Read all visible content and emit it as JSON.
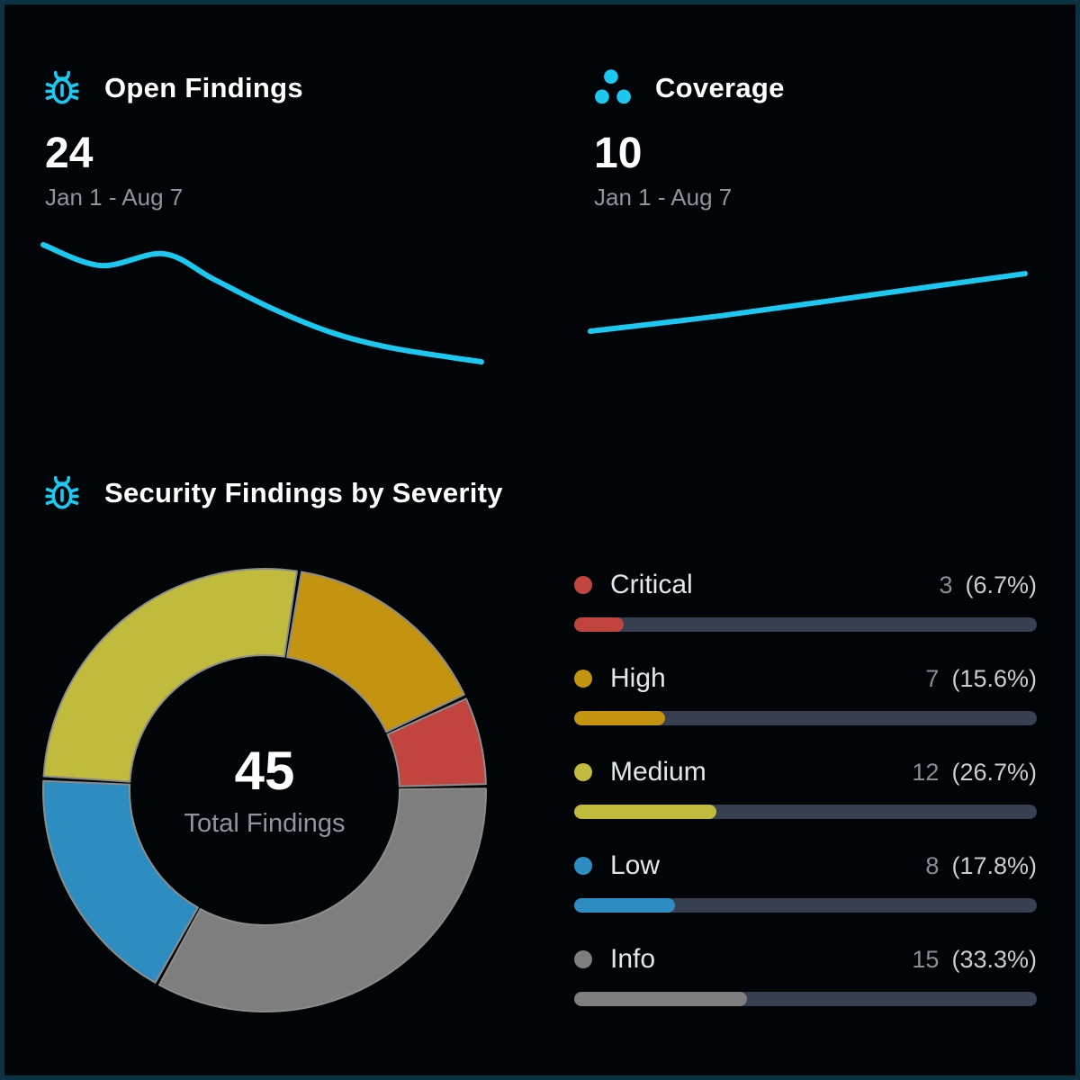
{
  "theme": {
    "background": "#020507",
    "frame_border": "#0c3341",
    "accent": "#1cc8f0",
    "text_primary": "#ffffff",
    "text_secondary": "#8e959f",
    "legend_label_color": "#e4e6e9",
    "count_color": "#878d97",
    "pct_color": "#c9cdd3",
    "bar_track": "#364050",
    "donut_outline": "#8c8c8c"
  },
  "cards": [
    {
      "title": "Open Findings",
      "icon": "bug-icon",
      "value": "24",
      "date_range": "Jan 1 - Aug 7"
    },
    {
      "title": "Coverage",
      "icon": "scatter-dots-icon",
      "value": "10",
      "date_range": "Jan 1 - Aug 7"
    }
  ],
  "severity": {
    "title": "Security Findings by Severity",
    "icon": "bug-icon",
    "center_value": "45",
    "center_label": "Total Findings",
    "rows": [
      {
        "label": "Critical",
        "count": "3",
        "pct": "(6.7%)",
        "pct_value": 6.7,
        "color": "#c1453e"
      },
      {
        "label": "High",
        "count": "7",
        "pct": "(15.6%)",
        "pct_value": 15.6,
        "color": "#c4930f"
      },
      {
        "label": "Medium",
        "count": "12",
        "pct": "(26.7%)",
        "pct_value": 26.7,
        "color": "#c0bb3d"
      },
      {
        "label": "Low",
        "count": "8",
        "pct": "(17.8%)",
        "pct_value": 17.8,
        "color": "#2d8dc1"
      },
      {
        "label": "Info",
        "count": "15",
        "pct": "(33.3%)",
        "pct_value": 33.3,
        "color": "#7e7e7e"
      }
    ]
  },
  "chart_data": [
    {
      "id": "open-findings-sparkline",
      "type": "line",
      "title": "Open Findings",
      "current_value": 24,
      "x_range_label": "Jan 1 - Aug 7",
      "axes": "none (sparkline, normalized 0-100 canvas coords, y from top)",
      "points_pct": [
        [
          0.6,
          6.9
        ],
        [
          13.4,
          22.8
        ],
        [
          27.4,
          13.8
        ],
        [
          38.4,
          33.1
        ],
        [
          51.6,
          55.9
        ],
        [
          65.0,
          74.5
        ],
        [
          78.4,
          86.2
        ],
        [
          98.0,
          96.6
        ]
      ],
      "trend": "decreasing with small bump near start",
      "color": "#1cc8f0",
      "stroke_width": 6
    },
    {
      "id": "coverage-sparkline",
      "type": "line",
      "title": "Coverage",
      "current_value": 10,
      "x_range_label": "Jan 1 - Aug 7",
      "axes": "none (sparkline, normalized 0-100 canvas coords, y from top)",
      "points_pct": [
        [
          1.2,
          91.3
        ],
        [
          31.7,
          68.8
        ],
        [
          65.3,
          40.0
        ],
        [
          98.8,
          11.3
        ]
      ],
      "trend": "steadily increasing",
      "color": "#1cc8f0",
      "stroke_width": 6
    },
    {
      "id": "severity-donut",
      "type": "pie",
      "subtype": "donut",
      "title": "Security Findings by Severity",
      "total": 45,
      "center_value": 45,
      "center_label": "Total Findings",
      "categories": [
        "Critical",
        "High",
        "Medium",
        "Low",
        "Info"
      ],
      "values": [
        3,
        7,
        12,
        8,
        15
      ],
      "percentages": [
        6.7,
        15.6,
        26.7,
        17.8,
        33.3
      ],
      "colors": [
        "#c1453e",
        "#c4930f",
        "#c0bb3d",
        "#2d8dc1",
        "#7e7e7e"
      ],
      "clockwise_order_from_top": [
        "High",
        "Critical",
        "Info",
        "Low",
        "Medium"
      ],
      "start_angle_deg_from_top": 9,
      "gap_deg": 1.2,
      "outer_radius": 246,
      "inner_radius": 150,
      "legend_position": "right, each severity with count, percent and progress bar"
    }
  ]
}
